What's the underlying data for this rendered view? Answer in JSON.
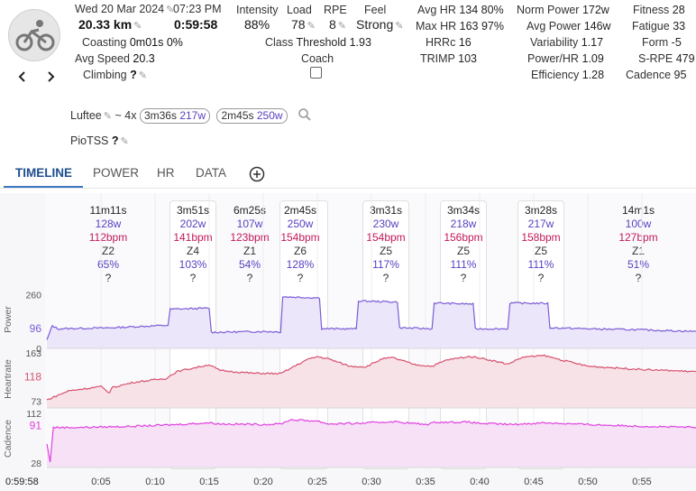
{
  "activity": {
    "date": "Wed 20 Mar 2024",
    "time": "07:23 PM",
    "distance": "20.33 km",
    "duration": "0:59:58",
    "coasting_label": "Coasting",
    "coasting_value": "0m01s 0%",
    "avg_speed_label": "Avg Speed",
    "avg_speed_value": "20.3",
    "climbing_label": "Climbing",
    "climbing_value": "?"
  },
  "metrics": {
    "intensity_label": "Intensity",
    "intensity_value": "88%",
    "load_label": "Load",
    "load_value": "78",
    "rpe_label": "RPE",
    "rpe_value": "8",
    "feel_label": "Feel",
    "feel_value": "Strong",
    "class_label": "Class",
    "class_value": "Threshold 1.93",
    "coach_label": "Coach",
    "avg_hr_label": "Avg HR",
    "avg_hr_value": "134 80%",
    "max_hr_label": "Max HR",
    "max_hr_value": "163 97%",
    "hrrc_label": "HRRc",
    "hrrc_value": "16",
    "trimp_label": "TRIMP",
    "trimp_value": "103",
    "norm_power_label": "Norm Power",
    "norm_power_value": "172w",
    "avg_power_label": "Avg Power",
    "avg_power_value": "146w",
    "variability_label": "Variability",
    "variability_value": "1.17",
    "power_hr_label": "Power/HR",
    "power_hr_value": "1.09",
    "efficiency_label": "Efficiency",
    "efficiency_value": "1.28",
    "fitness_label": "Fitness",
    "fitness_value": "28",
    "fatigue_label": "Fatigue",
    "fatigue_value": "33",
    "form_label": "Form",
    "form_value": "-5",
    "srpe_label": "S-RPE",
    "srpe_value": "479",
    "cadence_label": "Cadence",
    "cadence_value": "95"
  },
  "workout": {
    "name": "Luftee",
    "repeat": "~ 4x",
    "chip1_time": "3m36s",
    "chip1_watts": "217w",
    "chip2_time": "2m45s",
    "chip2_watts": "250w",
    "piotss_label": "PioTSS",
    "piotss_value": "?"
  },
  "tabs": [
    "TIMELINE",
    "POWER",
    "HR",
    "DATA"
  ],
  "intervals": [
    {
      "time": "11m11s",
      "power": "128w",
      "hr": "112bpm",
      "zone": "Z2",
      "pct": "65%",
      "q": "?"
    },
    {
      "time": "3m51s",
      "power": "202w",
      "hr": "141bpm",
      "zone": "Z4",
      "pct": "103%",
      "q": "?"
    },
    {
      "time": "6m25s",
      "power": "107w",
      "hr": "123bpm",
      "zone": "Z1",
      "pct": "54%",
      "q": "?"
    },
    {
      "time": "2m45s",
      "power": "250w",
      "hr": "154bpm",
      "zone": "Z6",
      "pct": "128%",
      "q": "?"
    },
    {
      "time": "3m31s",
      "power": "230w",
      "hr": "154bpm",
      "zone": "Z5",
      "pct": "117%",
      "q": "?"
    },
    {
      "time": "3m34s",
      "power": "218w",
      "hr": "156bpm",
      "zone": "Z5",
      "pct": "111%",
      "q": "?"
    },
    {
      "time": "3m28s",
      "power": "217w",
      "hr": "158bpm",
      "zone": "Z5",
      "pct": "111%",
      "q": "?"
    },
    {
      "time": "14m1s",
      "power": "100w",
      "hr": "127bpm",
      "zone": "Z1",
      "pct": "51%",
      "q": "?"
    }
  ],
  "chart_data": {
    "type": "line",
    "x_ticks": [
      "0:05",
      "0:10",
      "0:15",
      "0:20",
      "0:25",
      "0:30",
      "0:35",
      "0:40",
      "0:45",
      "0:50",
      "0:55"
    ],
    "x_end_label": "0:59:58",
    "x_range_minutes": [
      0,
      60
    ],
    "panels": [
      {
        "name": "Power",
        "ticks": [
          "260",
          "96",
          "0"
        ],
        "tick_values": [
          260,
          96,
          0
        ],
        "ylim": [
          0,
          280
        ],
        "color": "#7c5cd6",
        "fill": "#ebe6f9"
      },
      {
        "name": "Heartrate",
        "ticks": [
          "163",
          "118",
          "73"
        ],
        "tick_values": [
          163,
          118,
          73
        ],
        "ylim": [
          60,
          168
        ],
        "color": "#d8506e",
        "fill": "#f7e3e7"
      },
      {
        "name": "Cadence",
        "ticks": [
          "112",
          "91",
          "28"
        ],
        "tick_values": [
          112,
          91,
          28
        ],
        "ylim": [
          20,
          118
        ],
        "color": "#e040e0",
        "fill": "#f6e1f6"
      }
    ],
    "series": {
      "power": [
        [
          0,
          40
        ],
        [
          0.5,
          110
        ],
        [
          1,
          95
        ],
        [
          3,
          97
        ],
        [
          6,
          100
        ],
        [
          8,
          105
        ],
        [
          11.2,
          112
        ],
        [
          11.4,
          190
        ],
        [
          15,
          195
        ],
        [
          15.2,
          78
        ],
        [
          20,
          82
        ],
        [
          21.6,
          80
        ],
        [
          21.8,
          250
        ],
        [
          25.2,
          245
        ],
        [
          25.4,
          95
        ],
        [
          28.6,
          95
        ],
        [
          28.8,
          230
        ],
        [
          32.4,
          225
        ],
        [
          32.6,
          100
        ],
        [
          35.6,
          95
        ],
        [
          35.8,
          220
        ],
        [
          39.4,
          215
        ],
        [
          39.6,
          95
        ],
        [
          42.6,
          95
        ],
        [
          42.8,
          220
        ],
        [
          46.3,
          218
        ],
        [
          46.5,
          100
        ],
        [
          50,
          95
        ],
        [
          55,
          90
        ],
        [
          60,
          82
        ]
      ],
      "heartrate": [
        [
          0,
          75
        ],
        [
          2,
          92
        ],
        [
          5,
          100
        ],
        [
          5.8,
          88
        ],
        [
          6,
          98
        ],
        [
          8,
          108
        ],
        [
          11,
          115
        ],
        [
          12,
          128
        ],
        [
          15,
          141
        ],
        [
          16,
          130
        ],
        [
          19,
          125
        ],
        [
          21.6,
          124
        ],
        [
          24,
          150
        ],
        [
          25,
          156
        ],
        [
          26,
          152
        ],
        [
          28,
          138
        ],
        [
          29.5,
          137
        ],
        [
          31,
          152
        ],
        [
          32,
          154
        ],
        [
          34,
          141
        ],
        [
          35.6,
          138
        ],
        [
          37,
          150
        ],
        [
          39,
          156
        ],
        [
          40,
          154
        ],
        [
          42.6,
          142
        ],
        [
          44,
          155
        ],
        [
          46,
          158
        ],
        [
          47.5,
          150
        ],
        [
          50,
          138
        ],
        [
          55,
          132
        ],
        [
          60,
          128
        ]
      ],
      "cadence": [
        [
          0,
          60
        ],
        [
          0.3,
          30
        ],
        [
          0.6,
          88
        ],
        [
          3,
          88
        ],
        [
          8,
          90
        ],
        [
          11,
          92
        ],
        [
          15,
          96
        ],
        [
          16,
          94
        ],
        [
          20,
          93
        ],
        [
          21.6,
          94
        ],
        [
          22.5,
          101
        ],
        [
          25,
          99
        ],
        [
          26,
          94
        ],
        [
          29,
          95
        ],
        [
          32,
          98
        ],
        [
          35,
          93
        ],
        [
          36,
          97
        ],
        [
          39,
          97
        ],
        [
          40,
          95
        ],
        [
          43,
          93
        ],
        [
          46,
          96
        ],
        [
          50,
          93
        ],
        [
          55,
          90
        ],
        [
          60,
          88
        ]
      ]
    },
    "intervals_minutes": [
      [
        0,
        11.2
      ],
      [
        11.2,
        15.05
      ],
      [
        15.05,
        21.5
      ],
      [
        21.5,
        25.25
      ],
      [
        28.7,
        32.2
      ],
      [
        35.7,
        39.3
      ],
      [
        42.6,
        46.1
      ],
      [
        46.1,
        60
      ]
    ]
  }
}
